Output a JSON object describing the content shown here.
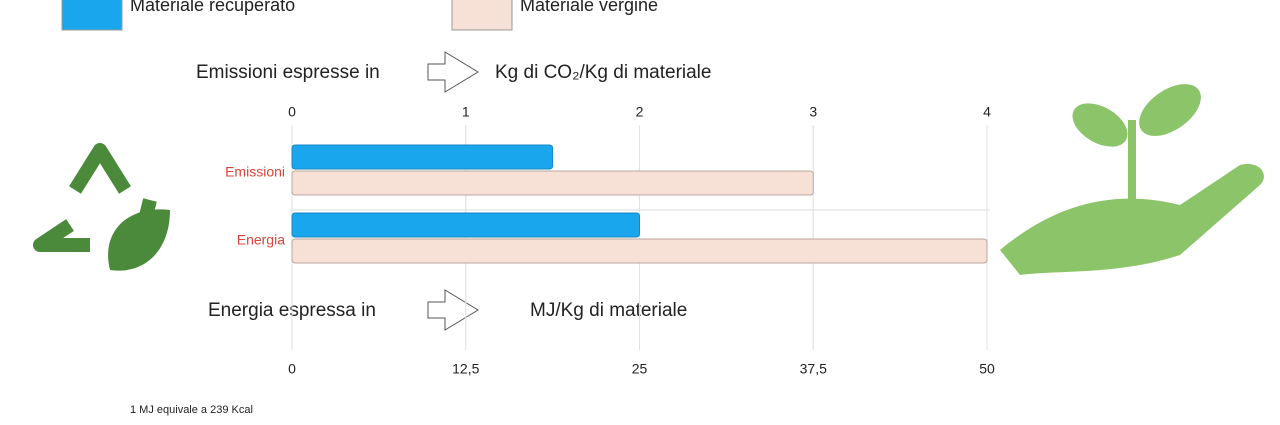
{
  "chart_data": {
    "type": "bar",
    "orientation": "horizontal",
    "categories": [
      "Emissioni",
      "Energia"
    ],
    "category_axes": [
      "x2",
      "x"
    ],
    "series": [
      {
        "name": "Materiale recuperato",
        "color": "#1aa6ec",
        "values": [
          1.5,
          25
        ]
      },
      {
        "name": "Materiale vergine",
        "color": "#f7e0d6",
        "values": [
          3.0,
          50
        ]
      }
    ],
    "x2lim": [
      0,
      4
    ],
    "x2ticks": [
      0,
      1,
      2,
      3,
      4
    ],
    "xlim": [
      0,
      50
    ],
    "xticks": [
      0,
      {
        "value": 12.5,
        "label": "12,5"
      },
      25,
      {
        "value": 37.5,
        "label": "37,5"
      },
      50
    ],
    "grid": true,
    "x2_label_prefix": "Emissioni espresse in",
    "x2_label": "Kg di CO₂/Kg di materiale",
    "x_label_prefix": "Energia espressa in",
    "x_label": "MJ/Kg di materiale",
    "footnote": "1 MJ equivale a 239 Kcal"
  }
}
